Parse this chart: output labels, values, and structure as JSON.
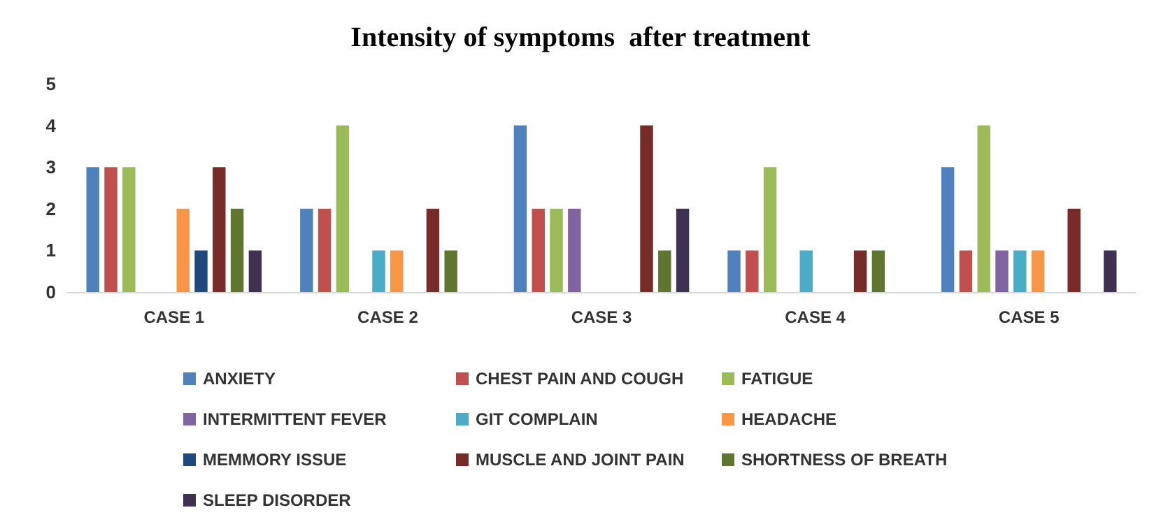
{
  "chart_data": {
    "type": "bar",
    "title": "Intensity of symptoms  after treatment",
    "categories": [
      "CASE 1",
      "CASE 2",
      "CASE 3",
      "CASE 4",
      "CASE 5"
    ],
    "ylim": [
      0,
      5
    ],
    "yticks": [
      0,
      1,
      2,
      3,
      4,
      5
    ],
    "grid": false,
    "legend": "bottom",
    "series": [
      {
        "name": "ANXIETY",
        "color": "#4f81bd",
        "values": [
          3,
          2,
          4,
          1,
          3
        ]
      },
      {
        "name": "CHEST PAIN AND COUGH",
        "color": "#c0504d",
        "values": [
          3,
          2,
          2,
          1,
          1
        ]
      },
      {
        "name": "FATIGUE",
        "color": "#9bbb59",
        "values": [
          3,
          4,
          2,
          3,
          4
        ]
      },
      {
        "name": "INTERMITTENT FEVER",
        "color": "#8064a2",
        "values": [
          0,
          0,
          2,
          0,
          1
        ]
      },
      {
        "name": "GIT COMPLAIN",
        "color": "#4bacc6",
        "values": [
          0,
          1,
          0,
          1,
          1
        ]
      },
      {
        "name": "HEADACHE",
        "color": "#f79646",
        "values": [
          2,
          1,
          0,
          0,
          1
        ]
      },
      {
        "name": "MEMMORY ISSUE",
        "color": "#1f497d",
        "values": [
          1,
          0,
          0,
          0,
          0
        ]
      },
      {
        "name": "MUSCLE AND JOINT PAIN",
        "color": "#772c2a",
        "values": [
          3,
          2,
          4,
          1,
          2
        ]
      },
      {
        "name": "SHORTNESS OF BREATH",
        "color": "#5f7530",
        "values": [
          2,
          1,
          1,
          1,
          0
        ]
      },
      {
        "name": "SLEEP DISORDER",
        "color": "#3f3151",
        "values": [
          1,
          0,
          2,
          0,
          1
        ]
      }
    ]
  }
}
